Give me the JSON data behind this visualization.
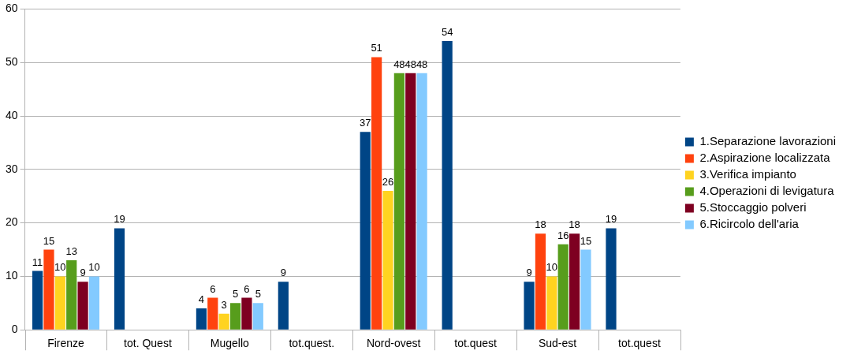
{
  "chart_data": {
    "type": "bar",
    "categories": [
      "Firenze",
      "tot. Quest",
      "Mugello",
      "tot.quest.",
      "Nord-ovest",
      "tot.quest",
      "Sud-est",
      "tot.quest"
    ],
    "series": [
      {
        "name": "1.Separazione lavorazioni",
        "color": "#004586",
        "values": [
          11,
          19,
          4,
          9,
          37,
          54,
          9,
          19
        ]
      },
      {
        "name": "2.Aspirazione localizzata",
        "color": "#ff420e",
        "values": [
          15,
          null,
          6,
          null,
          51,
          null,
          18,
          null
        ]
      },
      {
        "name": "3.Verifica impianto",
        "color": "#ffd320",
        "values": [
          10,
          null,
          3,
          null,
          26,
          null,
          10,
          null
        ]
      },
      {
        "name": "4.Operazioni di levigatura",
        "color": "#579d1c",
        "values": [
          13,
          null,
          5,
          null,
          48,
          null,
          16,
          null
        ]
      },
      {
        "name": "5.Stoccaggio polveri",
        "color": "#7e0021",
        "values": [
          9,
          null,
          6,
          null,
          48,
          null,
          18,
          null
        ]
      },
      {
        "name": "6.Ricircolo dell'aria",
        "color": "#83caff",
        "values": [
          10,
          null,
          5,
          null,
          48,
          null,
          15,
          null
        ]
      }
    ],
    "ylim": [
      0,
      60
    ],
    "yticks": [
      0,
      10,
      20,
      30,
      40,
      50,
      60
    ],
    "grid": "y",
    "legend": "right",
    "data_labels": true
  }
}
